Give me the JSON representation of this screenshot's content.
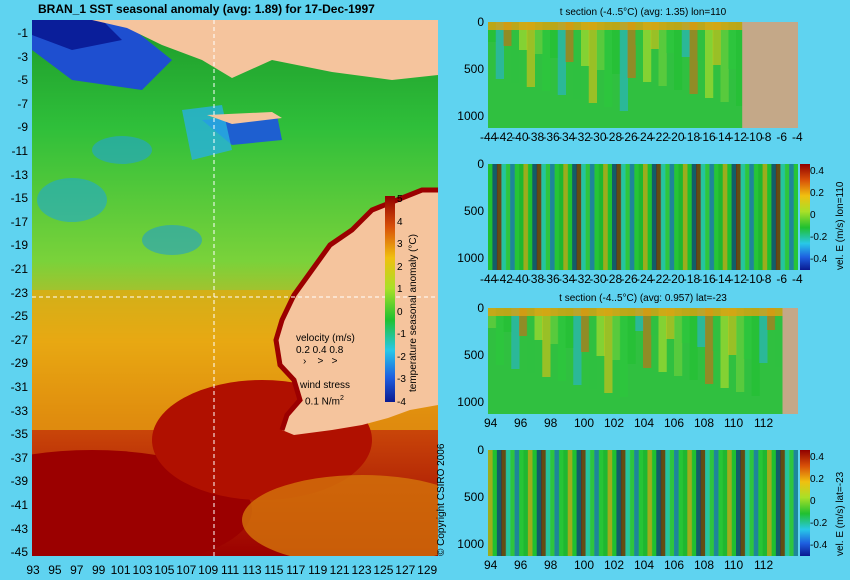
{
  "map": {
    "title": "BRAN_1  SST seasonal anomaly (avg: 1.89) for 17-Dec-1997",
    "y_ticks": [
      "-1",
      "-3",
      "-5",
      "-7",
      "-9",
      "-11",
      "-13",
      "-15",
      "-17",
      "-19",
      "-21",
      "-23",
      "-25",
      "-27",
      "-29",
      "-31",
      "-33",
      "-35",
      "-37",
      "-39",
      "-41",
      "-43",
      "-45"
    ],
    "x_ticks": [
      "93",
      "95",
      "97",
      "99",
      "101",
      "103",
      "105",
      "107",
      "109",
      "111",
      "113",
      "115",
      "117",
      "119",
      "121",
      "123",
      "125",
      "127",
      "129"
    ],
    "colorbar_label": "temperature seasonal anomaly (°C)",
    "colorbar_ticks": [
      "5",
      "4",
      "3",
      "2",
      "1",
      "0",
      "-1",
      "-2",
      "-3",
      "-4"
    ],
    "velocity_title": "velocity (m/s)",
    "velocity_scale": "0.2 0.4 0.8",
    "wind_label": "wind stress",
    "wind_scale": "0.1 N/m",
    "wind_exp": "2",
    "copyright": "© Copyright CSIRO 2006",
    "colors": {
      "land": "#f5c49d",
      "deep_warm": "#9b0000"
    }
  },
  "panels": [
    {
      "title": "t section (-4..5°C) (avg: 1.35) lon=110",
      "y_ticks": [
        "0",
        "500",
        "1000"
      ],
      "x_ticks": [
        "-44",
        "-42",
        "-40",
        "-38",
        "-36",
        "-34",
        "-32",
        "-30",
        "-28",
        "-26",
        "-24",
        "-22",
        "-20",
        "-18",
        "-16",
        "-14",
        "-12",
        "-10",
        "-8",
        "-6",
        "-4"
      ],
      "colorbar_label": "",
      "colorbar_ticks": []
    },
    {
      "title": "",
      "y_ticks": [
        "0",
        "500",
        "1000"
      ],
      "x_ticks": [
        "-44",
        "-42",
        "-40",
        "-38",
        "-36",
        "-34",
        "-32",
        "-30",
        "-28",
        "-26",
        "-24",
        "-22",
        "-20",
        "-18",
        "-16",
        "-14",
        "-12",
        "-10",
        "-8",
        "-6",
        "-4"
      ],
      "colorbar_label": "vel. E (m/s) lon=110",
      "colorbar_ticks": [
        "0.4",
        "0.2",
        "0",
        "-0.2",
        "-0.4"
      ]
    },
    {
      "title": "t section (-4..5°C) (avg: 0.957) lat=-23",
      "y_ticks": [
        "0",
        "500",
        "1000"
      ],
      "x_ticks": [
        "94",
        "96",
        "98",
        "100",
        "102",
        "104",
        "106",
        "108",
        "110",
        "112"
      ],
      "colorbar_label": "",
      "colorbar_ticks": []
    },
    {
      "title": "",
      "y_ticks": [
        "0",
        "500",
        "1000"
      ],
      "x_ticks": [
        "94",
        "96",
        "98",
        "100",
        "102",
        "104",
        "106",
        "108",
        "110",
        "112"
      ],
      "colorbar_label": "vel. E (m/s) lat=-23",
      "colorbar_ticks": [
        "0.4",
        "0.2",
        "0",
        "-0.2",
        "-0.4"
      ]
    }
  ],
  "chart_data": [
    {
      "type": "heatmap",
      "title": "BRAN_1  SST seasonal anomaly (avg: 1.89) for 17-Dec-1997",
      "xlabel": "",
      "ylabel": "",
      "xlim": [
        93,
        130
      ],
      "ylim": [
        -45,
        0
      ],
      "clim": [
        -4,
        5
      ]
    },
    {
      "type": "heatmap",
      "title": "t section (-4..5°C) (avg: 1.35) lon=110",
      "xlim": [
        -45,
        -3
      ],
      "ylim": [
        1050,
        0
      ],
      "clim": [
        -4,
        5
      ]
    },
    {
      "type": "heatmap",
      "title": "",
      "xlim": [
        -45,
        -3
      ],
      "ylim": [
        1050,
        0
      ],
      "clim": [
        -0.5,
        0.5
      ]
    },
    {
      "type": "heatmap",
      "title": "t section (-4..5°C) (avg: 0.957) lat=-23",
      "xlim": [
        93,
        114
      ],
      "ylim": [
        1050,
        0
      ],
      "clim": [
        -4,
        5
      ]
    },
    {
      "type": "heatmap",
      "title": "",
      "xlim": [
        93,
        114
      ],
      "ylim": [
        1050,
        0
      ],
      "clim": [
        -0.5,
        0.5
      ]
    }
  ]
}
